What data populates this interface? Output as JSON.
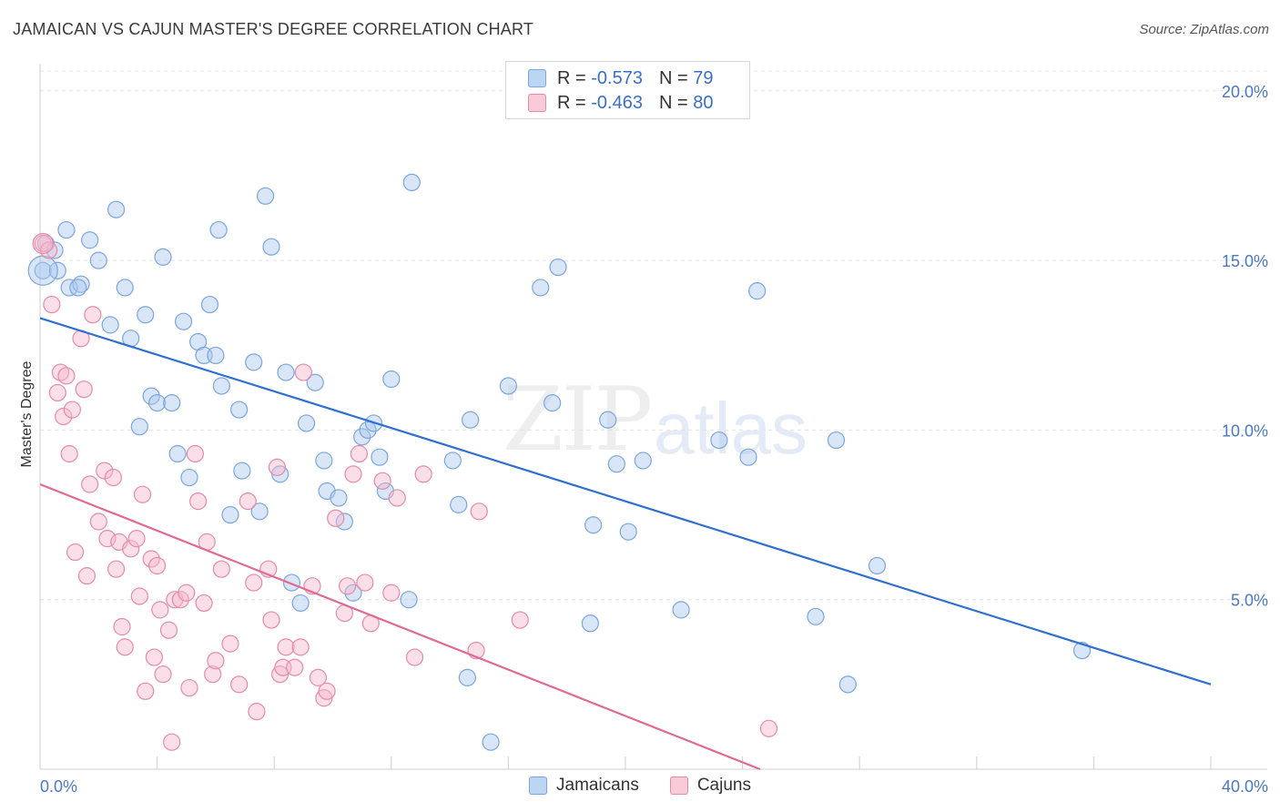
{
  "header": {
    "title": "JAMAICAN VS CAJUN MASTER'S DEGREE CORRELATION CHART",
    "source": "Source: ZipAtlas.com"
  },
  "watermark": {
    "zip": "ZIP",
    "atlas": "atlas"
  },
  "legend": {
    "rows": [
      {
        "r_label": "R =",
        "r_value": "-0.573",
        "n_label": "N =",
        "n_value": "79"
      },
      {
        "r_label": "R =",
        "r_value": "-0.463",
        "n_label": "N =",
        "n_value": "80"
      }
    ]
  },
  "bottom_legend": {
    "jamaicans": "Jamaicans",
    "cajuns": "Cajuns"
  },
  "colors": {
    "jamaican_fill": "#a8c8f0",
    "jamaican_stroke": "#7aa6de",
    "jamaican_line": "#2f6fd0",
    "cajun_fill": "#f7b8cc",
    "cajun_stroke": "#e68aa8",
    "cajun_line": "#e06a94",
    "tick_text": "#4a78c2"
  },
  "chart_data": {
    "type": "scatter",
    "title": "JAMAICAN VS CAJUN MASTER'S DEGREE CORRELATION CHART",
    "ylabel": "Master's Degree",
    "xlabel": "",
    "xlim": [
      0,
      40
    ],
    "ylim": [
      0,
      20.8
    ],
    "x_tick_labels": [
      "0.0%",
      "40.0%"
    ],
    "y_ticks": [
      5,
      10,
      15,
      20
    ],
    "y_tick_labels": [
      "5.0%",
      "10.0%",
      "15.0%",
      "20.0%"
    ],
    "grid": true,
    "legend_position": "top-center",
    "series": [
      {
        "name": "Jamaicans",
        "r": -0.573,
        "n": 79,
        "trend": {
          "x": [
            0,
            40
          ],
          "y": [
            13.3,
            2.5
          ]
        },
        "points": [
          [
            0.1,
            14.7
          ],
          [
            0.2,
            15.5
          ],
          [
            0.6,
            14.7
          ],
          [
            0.9,
            15.9
          ],
          [
            1.0,
            14.2
          ],
          [
            1.4,
            14.3
          ],
          [
            1.7,
            15.6
          ],
          [
            2.0,
            15.0
          ],
          [
            2.4,
            13.1
          ],
          [
            2.6,
            16.5
          ],
          [
            2.9,
            14.2
          ],
          [
            3.1,
            12.7
          ],
          [
            3.4,
            10.1
          ],
          [
            3.6,
            13.4
          ],
          [
            3.8,
            11.0
          ],
          [
            4.0,
            10.8
          ],
          [
            4.2,
            15.1
          ],
          [
            4.5,
            10.8
          ],
          [
            4.7,
            9.3
          ],
          [
            4.9,
            13.2
          ],
          [
            5.1,
            8.6
          ],
          [
            5.4,
            12.6
          ],
          [
            5.6,
            12.2
          ],
          [
            5.8,
            13.7
          ],
          [
            6.0,
            12.2
          ],
          [
            6.2,
            11.3
          ],
          [
            6.5,
            7.5
          ],
          [
            6.8,
            10.6
          ],
          [
            6.9,
            8.8
          ],
          [
            7.3,
            12.0
          ],
          [
            7.5,
            7.6
          ],
          [
            7.7,
            16.9
          ],
          [
            7.9,
            15.4
          ],
          [
            8.2,
            8.7
          ],
          [
            8.4,
            11.7
          ],
          [
            8.6,
            5.5
          ],
          [
            8.9,
            4.9
          ],
          [
            9.1,
            10.2
          ],
          [
            9.4,
            11.4
          ],
          [
            9.7,
            9.1
          ],
          [
            9.8,
            8.2
          ],
          [
            10.2,
            8.0
          ],
          [
            10.4,
            7.3
          ],
          [
            10.7,
            5.2
          ],
          [
            11.0,
            9.8
          ],
          [
            11.2,
            10.0
          ],
          [
            11.4,
            10.2
          ],
          [
            11.6,
            9.2
          ],
          [
            11.8,
            8.2
          ],
          [
            12.0,
            11.5
          ],
          [
            12.6,
            5.0
          ],
          [
            12.7,
            17.3
          ],
          [
            14.1,
            9.1
          ],
          [
            14.3,
            7.8
          ],
          [
            14.6,
            2.7
          ],
          [
            14.7,
            10.3
          ],
          [
            15.4,
            0.8
          ],
          [
            16.0,
            11.3
          ],
          [
            17.1,
            14.2
          ],
          [
            17.5,
            10.8
          ],
          [
            17.7,
            14.8
          ],
          [
            18.8,
            4.3
          ],
          [
            18.9,
            7.2
          ],
          [
            19.4,
            10.3
          ],
          [
            19.7,
            9.0
          ],
          [
            20.1,
            7.0
          ],
          [
            20.6,
            9.1
          ],
          [
            21.9,
            4.7
          ],
          [
            23.2,
            9.7
          ],
          [
            24.2,
            9.2
          ],
          [
            24.5,
            14.1
          ],
          [
            26.5,
            4.5
          ],
          [
            27.2,
            9.7
          ],
          [
            27.6,
            2.5
          ],
          [
            28.6,
            6.0
          ],
          [
            35.6,
            3.5
          ],
          [
            0.5,
            15.3
          ],
          [
            1.3,
            14.2
          ],
          [
            6.1,
            15.9
          ]
        ]
      },
      {
        "name": "Cajuns",
        "r": -0.463,
        "n": 80,
        "trend": {
          "x": [
            0,
            24.6
          ],
          "y": [
            8.4,
            0
          ]
        },
        "points": [
          [
            0.1,
            15.5
          ],
          [
            0.3,
            15.3
          ],
          [
            0.4,
            13.7
          ],
          [
            0.6,
            11.1
          ],
          [
            0.7,
            11.7
          ],
          [
            0.8,
            10.4
          ],
          [
            0.9,
            11.6
          ],
          [
            1.0,
            9.3
          ],
          [
            1.1,
            10.6
          ],
          [
            1.2,
            6.4
          ],
          [
            1.4,
            12.7
          ],
          [
            1.5,
            11.2
          ],
          [
            1.6,
            5.7
          ],
          [
            1.7,
            8.4
          ],
          [
            1.8,
            13.4
          ],
          [
            2.0,
            7.3
          ],
          [
            2.2,
            8.8
          ],
          [
            2.3,
            6.8
          ],
          [
            2.5,
            8.6
          ],
          [
            2.6,
            5.9
          ],
          [
            2.7,
            6.7
          ],
          [
            2.8,
            4.2
          ],
          [
            2.9,
            3.6
          ],
          [
            3.1,
            6.5
          ],
          [
            3.3,
            6.8
          ],
          [
            3.4,
            5.1
          ],
          [
            3.5,
            8.1
          ],
          [
            3.6,
            2.3
          ],
          [
            3.8,
            6.2
          ],
          [
            3.9,
            3.3
          ],
          [
            4.0,
            6.0
          ],
          [
            4.1,
            4.7
          ],
          [
            4.2,
            2.8
          ],
          [
            4.4,
            4.1
          ],
          [
            4.5,
            0.8
          ],
          [
            4.6,
            5.0
          ],
          [
            4.8,
            5.0
          ],
          [
            5.0,
            5.2
          ],
          [
            5.1,
            2.4
          ],
          [
            5.3,
            9.3
          ],
          [
            5.4,
            7.9
          ],
          [
            5.6,
            4.9
          ],
          [
            5.7,
            6.7
          ],
          [
            5.9,
            2.8
          ],
          [
            6.0,
            3.2
          ],
          [
            6.2,
            5.9
          ],
          [
            6.5,
            3.7
          ],
          [
            6.8,
            2.5
          ],
          [
            7.1,
            7.9
          ],
          [
            7.3,
            5.5
          ],
          [
            7.4,
            1.7
          ],
          [
            7.8,
            5.9
          ],
          [
            7.9,
            4.4
          ],
          [
            8.1,
            8.9
          ],
          [
            8.2,
            2.8
          ],
          [
            8.3,
            3.0
          ],
          [
            8.4,
            3.6
          ],
          [
            8.7,
            3.0
          ],
          [
            8.9,
            3.6
          ],
          [
            9.0,
            11.7
          ],
          [
            9.3,
            5.4
          ],
          [
            9.5,
            2.7
          ],
          [
            9.7,
            2.1
          ],
          [
            9.8,
            2.3
          ],
          [
            10.1,
            7.4
          ],
          [
            10.4,
            4.6
          ],
          [
            10.5,
            5.4
          ],
          [
            10.7,
            8.7
          ],
          [
            10.9,
            9.3
          ],
          [
            11.1,
            5.5
          ],
          [
            11.3,
            4.3
          ],
          [
            11.7,
            8.5
          ],
          [
            12.0,
            5.2
          ],
          [
            12.2,
            8.0
          ],
          [
            12.8,
            3.3
          ],
          [
            13.1,
            8.7
          ],
          [
            14.9,
            3.5
          ],
          [
            15.0,
            7.6
          ],
          [
            16.4,
            4.4
          ],
          [
            24.9,
            1.2
          ]
        ]
      }
    ]
  }
}
